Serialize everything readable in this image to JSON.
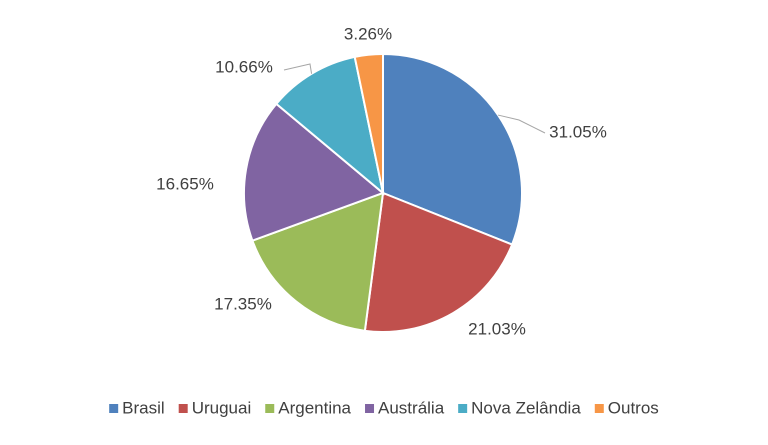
{
  "chart_data": {
    "type": "pie",
    "categories": [
      "Brasil",
      "Uruguai",
      "Argentina",
      "Austrália",
      "Nova Zelândia",
      "Outros"
    ],
    "values": [
      31.05,
      21.03,
      17.35,
      16.65,
      10.66,
      3.26
    ],
    "value_labels": [
      "31.05%",
      "21.03%",
      "17.35%",
      "16.65%",
      "10.66%",
      "3.26%"
    ],
    "colors": [
      "#4f81bd",
      "#c0504d",
      "#9bbb59",
      "#8064a2",
      "#4bacc6",
      "#f79646"
    ],
    "legend": "bottom"
  }
}
